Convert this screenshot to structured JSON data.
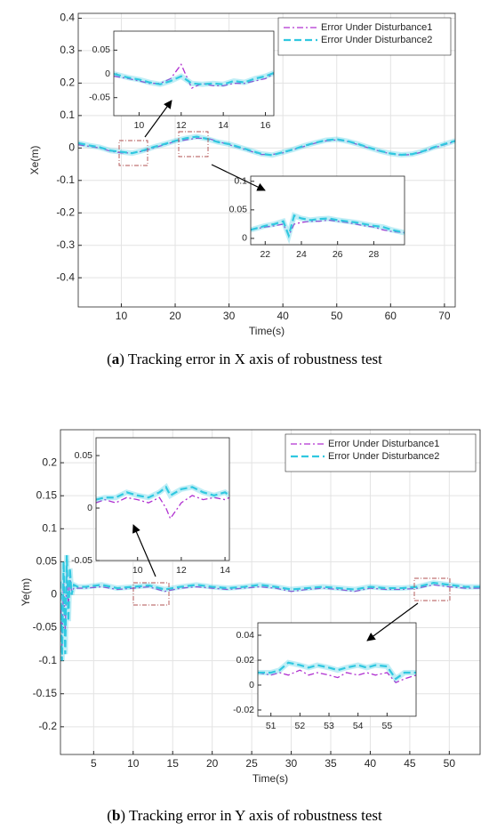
{
  "chart_data": [
    {
      "type": "line",
      "ylabel": "Xe(m)",
      "xlabel": "Time(s)",
      "grid": true,
      "legend": "upper right",
      "caption": [
        "(",
        "a",
        ") Tracking error in X axis of robustness test"
      ],
      "xlim": [
        2,
        72
      ],
      "ylim": [
        -0.49,
        0.415
      ],
      "xticks": [
        10,
        20,
        30,
        40,
        50,
        60,
        70
      ],
      "yticks": [
        0.4,
        0.3,
        0.2,
        0.1,
        0,
        -0.1,
        -0.2,
        -0.3,
        -0.4
      ],
      "x": [
        2,
        4,
        6,
        8,
        10,
        12,
        14,
        16,
        18,
        20,
        22,
        24,
        26,
        28,
        30,
        32,
        34,
        36,
        38,
        40,
        42,
        44,
        46,
        48,
        50,
        52,
        54,
        56,
        58,
        60,
        62,
        64,
        66,
        68,
        70,
        72
      ],
      "series": [
        {
          "name": "Error Under Disturbance1",
          "color": "#b030d0",
          "linestyle": "-.",
          "values": [
            0.01,
            0.005,
            0,
            -0.01,
            -0.015,
            -0.015,
            -0.01,
            0,
            0.01,
            0.02,
            0.025,
            0.03,
            0.03,
            0.02,
            0.01,
            0,
            -0.01,
            -0.02,
            -0.02,
            -0.015,
            -0.005,
            0.005,
            0.015,
            0.022,
            0.025,
            0.02,
            0.01,
            0,
            -0.01,
            -0.018,
            -0.022,
            -0.02,
            -0.012,
            0,
            0.01,
            0.02
          ]
        },
        {
          "name": "Error Under Disturbance2",
          "color": "#30c8e0",
          "linestyle": "--",
          "values": [
            0.015,
            0.008,
            0.002,
            -0.008,
            -0.012,
            -0.016,
            -0.008,
            0.003,
            0.012,
            0.022,
            0.03,
            0.035,
            0.028,
            0.018,
            0.012,
            0.002,
            -0.008,
            -0.018,
            -0.022,
            -0.013,
            -0.004,
            0.007,
            0.016,
            0.024,
            0.027,
            0.021,
            0.012,
            0.001,
            -0.009,
            -0.017,
            -0.021,
            -0.019,
            -0.01,
            0.002,
            0.012,
            0.022
          ]
        }
      ]
    },
    {
      "type": "line",
      "xlim": [
        8.8,
        16.4
      ],
      "ylim": [
        -0.088,
        0.09
      ],
      "xticks": [
        10,
        12,
        14,
        16
      ],
      "yticks": [
        0.05,
        0,
        -0.05
      ],
      "x": [
        8.8,
        9.5,
        10,
        10.5,
        11,
        11.5,
        12,
        12.5,
        13,
        13.5,
        14,
        14.5,
        15,
        15.5,
        16,
        16.4
      ],
      "series": [
        {
          "color": "#b030d0",
          "linestyle": "-.",
          "values": [
            -0.005,
            -0.01,
            -0.015,
            -0.02,
            -0.02,
            -0.01,
            0.02,
            -0.03,
            -0.02,
            -0.025,
            -0.025,
            -0.02,
            -0.02,
            -0.015,
            -0.01,
            0
          ]
        },
        {
          "color": "#30c8e0",
          "linestyle": "--",
          "values": [
            0,
            -0.008,
            -0.012,
            -0.018,
            -0.022,
            -0.015,
            -0.005,
            -0.02,
            -0.022,
            -0.02,
            -0.022,
            -0.015,
            -0.018,
            -0.01,
            -0.005,
            0.002
          ]
        }
      ]
    },
    {
      "type": "line",
      "xlim": [
        21.2,
        29.7
      ],
      "ylim": [
        -0.011,
        0.109
      ],
      "xticks": [
        22,
        24,
        26,
        28
      ],
      "yticks": [
        0.1,
        0.05,
        0
      ],
      "x": [
        21.2,
        22,
        22.5,
        23,
        23.3,
        23.6,
        24,
        24.5,
        25,
        25.5,
        26,
        26.5,
        27,
        27.5,
        28,
        28.5,
        29,
        29.7
      ],
      "series": [
        {
          "color": "#b030d0",
          "linestyle": "-.",
          "values": [
            0.015,
            0.02,
            0.022,
            0.025,
            0.005,
            0.025,
            0.028,
            0.03,
            0.03,
            0.032,
            0.03,
            0.028,
            0.025,
            0.022,
            0.02,
            0.015,
            0.012,
            0.01
          ]
        },
        {
          "color": "#30c8e0",
          "linestyle": "--",
          "values": [
            0.015,
            0.022,
            0.025,
            0.03,
            0.005,
            0.04,
            0.035,
            0.032,
            0.034,
            0.035,
            0.032,
            0.03,
            0.028,
            0.025,
            0.022,
            0.02,
            0.015,
            0.01
          ]
        }
      ]
    },
    {
      "type": "line",
      "ylabel": "Ye(m)",
      "xlabel": "Time(s)",
      "grid": true,
      "legend": "upper right",
      "caption": [
        "(",
        "b",
        ") Tracking error in Y axis of robustness test"
      ],
      "xlim": [
        0.8,
        53.9
      ],
      "ylim": [
        -0.242,
        0.25
      ],
      "xticks": [
        5,
        10,
        15,
        20,
        25,
        30,
        35,
        40,
        45,
        50
      ],
      "yticks": [
        0.2,
        0.15,
        0.1,
        0.05,
        0,
        -0.05,
        -0.1,
        -0.15,
        -0.2
      ],
      "x": [
        0.8,
        1.0,
        1.2,
        1.4,
        1.6,
        1.8,
        2.0,
        2.2,
        2.5,
        3,
        4,
        6,
        8,
        10,
        12,
        14,
        16,
        18,
        20,
        22,
        24,
        26,
        28,
        30,
        32,
        34,
        36,
        38,
        40,
        42,
        44,
        46,
        48,
        50,
        52,
        53.9
      ],
      "series": [
        {
          "name": "Error Under Disturbance1",
          "color": "#b030d0",
          "linestyle": "-.",
          "values": [
            0,
            -0.08,
            0.03,
            -0.06,
            0.04,
            -0.02,
            0.03,
            0.005,
            0.01,
            0.01,
            0.01,
            0.012,
            0.008,
            0.01,
            0.012,
            0.005,
            0.01,
            0.012,
            0.01,
            0.008,
            0.01,
            0.012,
            0.01,
            0.005,
            0.008,
            0.01,
            0.008,
            0.005,
            0.01,
            0.008,
            0.008,
            0.01,
            0.015,
            0.012,
            0.01,
            0.01
          ]
        },
        {
          "name": "Error Under Disturbance2",
          "color": "#30c8e0",
          "linestyle": "--",
          "values": [
            0.02,
            -0.1,
            0.05,
            -0.09,
            0.06,
            -0.04,
            0.04,
            0,
            0.015,
            0.012,
            0.012,
            0.015,
            0.01,
            0.012,
            0.014,
            0.008,
            0.012,
            0.015,
            0.012,
            0.01,
            0.012,
            0.015,
            0.012,
            0.008,
            0.01,
            0.012,
            0.01,
            0.008,
            0.012,
            0.01,
            0.01,
            0.012,
            0.018,
            0.015,
            0.012,
            0.012
          ]
        }
      ]
    },
    {
      "type": "line",
      "xlim": [
        8.1,
        14.2
      ],
      "ylim": [
        -0.05,
        0.067
      ],
      "xticks": [
        10,
        12,
        14
      ],
      "yticks": [
        0.05,
        0,
        -0.05
      ],
      "x": [
        8.1,
        8.5,
        9,
        9.5,
        10,
        10.5,
        11,
        11.3,
        11.5,
        12,
        12.5,
        13,
        13.5,
        14,
        14.2
      ],
      "series": [
        {
          "color": "#b030d0",
          "linestyle": "-.",
          "values": [
            0.005,
            0.008,
            0.005,
            0.01,
            0.008,
            0.005,
            0.01,
            0,
            -0.01,
            0.005,
            0.012,
            0.008,
            0.01,
            0.008,
            0.01
          ]
        },
        {
          "color": "#30c8e0",
          "linestyle": "--",
          "values": [
            0.008,
            0.01,
            0.01,
            0.015,
            0.012,
            0.01,
            0.015,
            0.02,
            0.012,
            0.018,
            0.02,
            0.015,
            0.012,
            0.015,
            0.012
          ]
        }
      ]
    },
    {
      "type": "line",
      "xlim": [
        50.55,
        56
      ],
      "ylim": [
        -0.025,
        0.05
      ],
      "xticks": [
        51,
        52,
        53,
        54,
        55
      ],
      "yticks": [
        0.04,
        0.02,
        0,
        -0.02
      ],
      "x": [
        50.55,
        51,
        51.3,
        51.6,
        52,
        52.3,
        52.6,
        53,
        53.3,
        53.6,
        54,
        54.3,
        54.6,
        55,
        55.3,
        55.6,
        56
      ],
      "series": [
        {
          "color": "#b030d0",
          "linestyle": "-.",
          "values": [
            0.01,
            0.008,
            0.01,
            0.008,
            0.012,
            0.008,
            0.01,
            0.008,
            0.006,
            0.01,
            0.008,
            0.01,
            0.008,
            0.01,
            0.002,
            0.005,
            0.008
          ]
        },
        {
          "color": "#30c8e0",
          "linestyle": "--",
          "values": [
            0.01,
            0.01,
            0.012,
            0.018,
            0.016,
            0.014,
            0.016,
            0.014,
            0.012,
            0.014,
            0.016,
            0.014,
            0.016,
            0.015,
            0.005,
            0.01,
            0.01
          ]
        }
      ]
    }
  ]
}
